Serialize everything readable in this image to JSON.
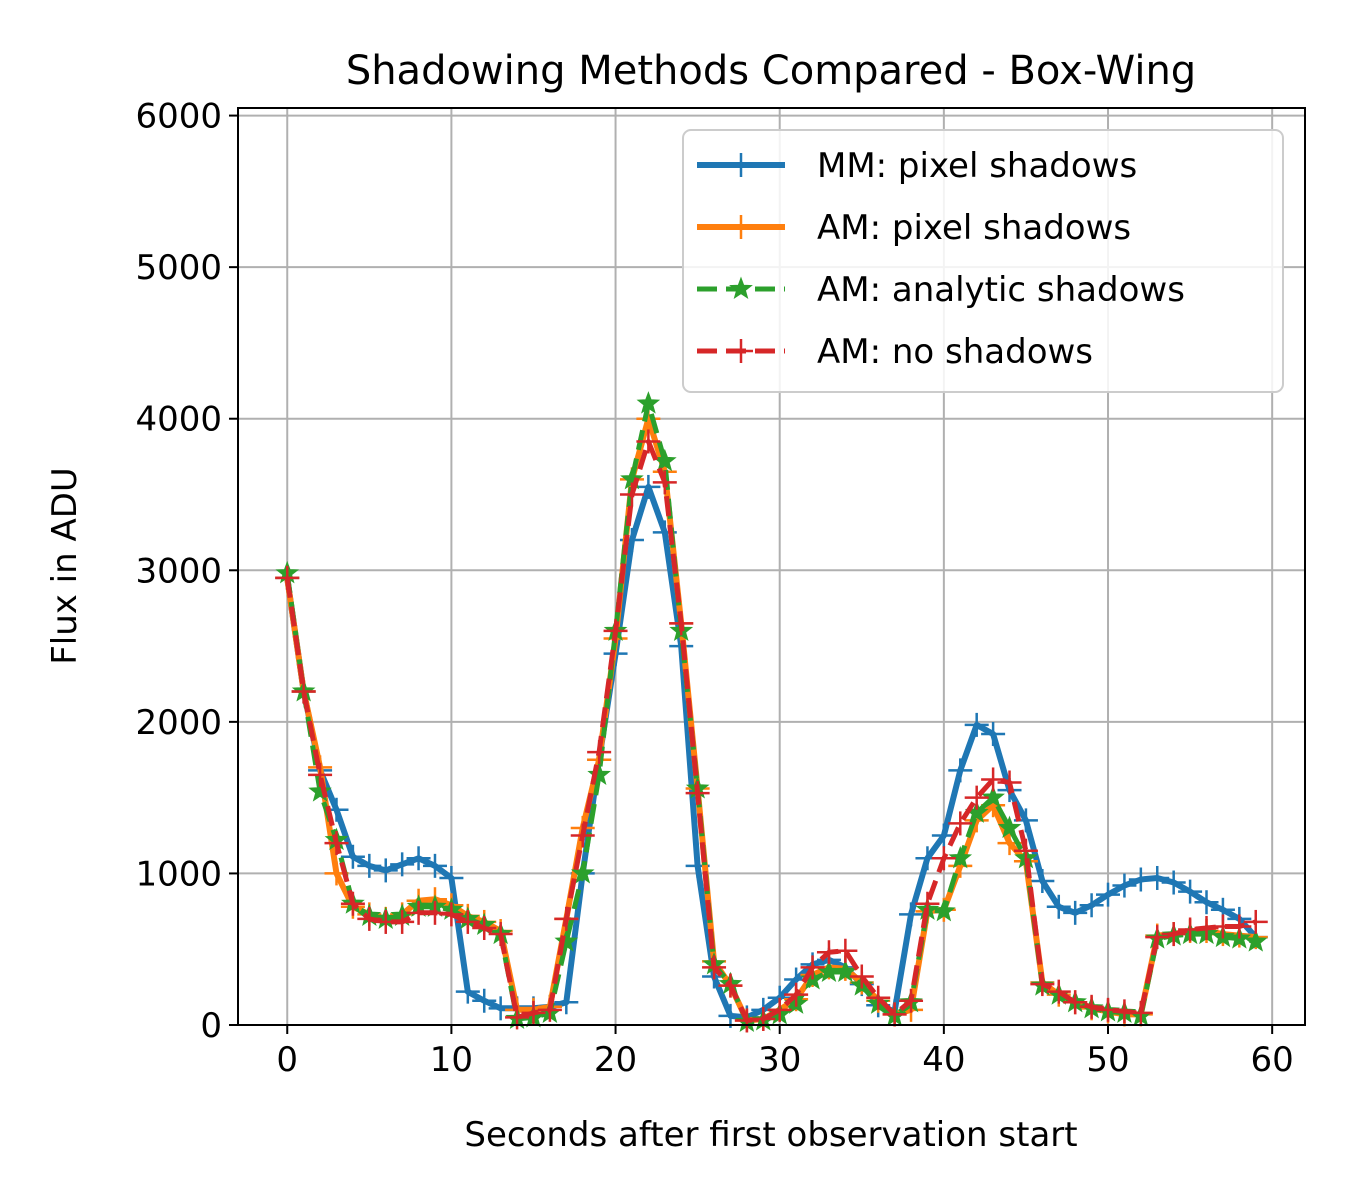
{
  "chart_data": {
    "type": "line",
    "title": "Shadowing Methods Compared - Box-Wing",
    "xlabel": "Seconds after first observation start",
    "ylabel": "Flux in ADU",
    "xlim": [
      -3,
      62
    ],
    "ylim": [
      0,
      6050
    ],
    "xticks": [
      0,
      10,
      20,
      30,
      40,
      50,
      60
    ],
    "yticks": [
      0,
      1000,
      2000,
      3000,
      4000,
      5000,
      6000
    ],
    "grid": true,
    "legend_position": "top-right",
    "x": [
      0,
      1,
      2,
      3,
      4,
      5,
      6,
      7,
      8,
      9,
      10,
      11,
      12,
      13,
      14,
      15,
      16,
      17,
      18,
      19,
      20,
      21,
      22,
      23,
      24,
      25,
      26,
      27,
      28,
      29,
      30,
      31,
      32,
      33,
      34,
      35,
      36,
      37,
      38,
      39,
      40,
      41,
      42,
      43,
      44,
      45,
      46,
      47,
      48,
      49,
      50,
      51,
      52,
      53,
      54,
      55,
      56,
      57,
      58,
      59
    ],
    "series": [
      {
        "name": "MM: pixel shadows",
        "color": "#1f77b4",
        "marker": "plus",
        "linestyle": "solid",
        "values": [
          2950,
          2200,
          1680,
          1420,
          1110,
          1050,
          1020,
          1060,
          1100,
          1050,
          970,
          220,
          160,
          110,
          110,
          110,
          120,
          150,
          1000,
          1750,
          2450,
          3200,
          3550,
          3250,
          2500,
          1050,
          320,
          60,
          50,
          100,
          180,
          300,
          400,
          430,
          380,
          270,
          130,
          90,
          730,
          1100,
          1250,
          1680,
          1980,
          1920,
          1550,
          1350,
          950,
          780,
          740,
          790,
          860,
          920,
          960,
          970,
          940,
          880,
          810,
          760,
          700,
          580
        ]
      },
      {
        "name": "AM: pixel shadows",
        "color": "#ff7f0e",
        "marker": "plus",
        "linestyle": "solid",
        "values": [
          2950,
          2200,
          1700,
          1000,
          780,
          730,
          700,
          730,
          820,
          830,
          790,
          720,
          680,
          620,
          100,
          100,
          120,
          700,
          1300,
          1750,
          2550,
          3600,
          4000,
          3650,
          2650,
          1560,
          420,
          260,
          30,
          40,
          100,
          170,
          330,
          380,
          370,
          280,
          160,
          70,
          100,
          750,
          760,
          1050,
          1350,
          1450,
          1200,
          1080,
          280,
          200,
          150,
          110,
          90,
          70,
          70,
          590,
          600,
          620,
          620,
          600,
          590,
          580
        ]
      },
      {
        "name": "AM: analytic shadows",
        "color": "#2ca02c",
        "marker": "star",
        "linestyle": "dashed",
        "values": [
          2980,
          2200,
          1540,
          1220,
          800,
          720,
          700,
          720,
          780,
          780,
          760,
          700,
          660,
          600,
          40,
          50,
          80,
          550,
          1000,
          1650,
          2600,
          3600,
          4100,
          3720,
          2600,
          1560,
          400,
          270,
          20,
          30,
          70,
          140,
          300,
          350,
          350,
          260,
          140,
          60,
          150,
          760,
          750,
          1100,
          1400,
          1500,
          1300,
          1100,
          260,
          200,
          150,
          110,
          90,
          80,
          60,
          570,
          590,
          600,
          600,
          580,
          570,
          550
        ]
      },
      {
        "name": "AM: no shadows",
        "color": "#d62728",
        "marker": "plus",
        "linestyle": "dashed",
        "values": [
          2950,
          2200,
          1650,
          1200,
          800,
          700,
          680,
          680,
          740,
          740,
          730,
          680,
          640,
          600,
          50,
          80,
          100,
          700,
          1250,
          1800,
          2600,
          3500,
          3850,
          3580,
          2650,
          1530,
          380,
          260,
          30,
          40,
          100,
          200,
          380,
          480,
          490,
          320,
          180,
          70,
          160,
          800,
          1100,
          1330,
          1500,
          1620,
          1600,
          1150,
          270,
          220,
          150,
          120,
          100,
          90,
          80,
          580,
          600,
          630,
          640,
          650,
          650,
          680
        ]
      }
    ]
  }
}
